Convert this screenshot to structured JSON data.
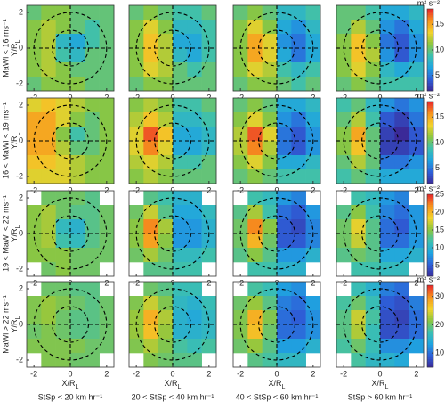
{
  "colormap": [
    "#3b2a98",
    "#2e5fd8",
    "#1fa4e0",
    "#3cc0b0",
    "#8cc63f",
    "#f2d22b",
    "#f7941d",
    "#e8262b"
  ],
  "chart_data": [
    {
      "type": "heatmap",
      "row_label": "MaWi < 16 ms⁻¹",
      "ylabel": "Y/R",
      "ylabel_sub": "L",
      "xlim": [
        -2.4,
        2.4
      ],
      "ylim": [
        -2.4,
        2.4
      ],
      "xticks": [
        -2,
        0,
        2
      ],
      "yticks": [
        -2,
        0,
        2
      ],
      "clim": [
        2,
        18
      ],
      "z": [
        [
          10,
          11,
          11,
          10,
          10,
          10
        ],
        [
          11,
          12,
          11,
          10,
          9,
          10
        ],
        [
          11,
          12,
          8,
          7,
          9,
          10
        ],
        [
          11,
          12,
          9,
          8,
          10,
          10
        ],
        [
          11,
          12,
          11,
          10,
          10,
          10
        ],
        [
          10,
          11,
          11,
          11,
          10,
          10
        ]
      ]
    },
    {
      "type": "heatmap",
      "xlim": [
        -2.4,
        2.4
      ],
      "ylim": [
        -2.4,
        2.4
      ],
      "xticks": [
        -2,
        0,
        2
      ],
      "clim": [
        2,
        18
      ],
      "z": [
        [
          10,
          11,
          10,
          9,
          9,
          10
        ],
        [
          11,
          13,
          11,
          8,
          8,
          9
        ],
        [
          11,
          14,
          12,
          7,
          7,
          9
        ],
        [
          11,
          14,
          12,
          8,
          7,
          9
        ],
        [
          11,
          13,
          12,
          10,
          9,
          10
        ],
        [
          10,
          11,
          11,
          10,
          10,
          10
        ]
      ]
    },
    {
      "type": "heatmap",
      "xlim": [
        -2.4,
        2.4
      ],
      "ylim": [
        -2.4,
        2.4
      ],
      "xticks": [
        -2,
        0,
        2
      ],
      "clim": [
        2,
        18
      ],
      "z": [
        [
          10,
          11,
          10,
          8,
          8,
          9
        ],
        [
          11,
          13,
          11,
          7,
          6,
          8
        ],
        [
          11,
          15,
          13,
          6,
          5,
          7
        ],
        [
          11,
          15,
          13,
          7,
          5,
          7
        ],
        [
          11,
          13,
          12,
          9,
          8,
          9
        ],
        [
          10,
          11,
          11,
          10,
          9,
          10
        ]
      ]
    },
    {
      "type": "heatmap",
      "xlim": [
        -2.4,
        2.4
      ],
      "ylim": [
        -2.4,
        2.4
      ],
      "xticks": [
        -2,
        0,
        2
      ],
      "clim": [
        2,
        18
      ],
      "colorbar": {
        "label": "m² s⁻²",
        "ticks": [
          5,
          10,
          15
        ]
      },
      "z": [
        [
          10,
          10,
          9,
          7,
          7,
          8
        ],
        [
          10,
          12,
          10,
          6,
          5,
          7
        ],
        [
          11,
          14,
          11,
          5,
          4,
          6
        ],
        [
          11,
          14,
          12,
          6,
          4,
          6
        ],
        [
          11,
          13,
          11,
          8,
          7,
          8
        ],
        [
          10,
          11,
          10,
          9,
          9,
          9
        ]
      ]
    },
    {
      "type": "heatmap",
      "row_label": "16 < MaWi < 19 ms⁻¹",
      "ylabel": "Y/R",
      "ylabel_sub": "L",
      "xlim": [
        -2.4,
        2.4
      ],
      "ylim": [
        -2.4,
        2.4
      ],
      "xticks": [
        -2,
        0,
        2
      ],
      "yticks": [
        -2,
        0,
        2
      ],
      "clim": [
        2,
        18
      ],
      "z": [
        [
          13,
          14,
          13,
          12,
          11,
          11
        ],
        [
          15,
          15,
          13,
          11,
          10,
          11
        ],
        [
          15,
          15,
          11,
          9,
          10,
          11
        ],
        [
          15,
          15,
          12,
          10,
          10,
          11
        ],
        [
          14,
          14,
          13,
          12,
          11,
          11
        ],
        [
          13,
          13,
          13,
          12,
          11,
          11
        ]
      ]
    },
    {
      "type": "heatmap",
      "xlim": [
        -2.4,
        2.4
      ],
      "ylim": [
        -2.4,
        2.4
      ],
      "xticks": [
        -2,
        0,
        2
      ],
      "clim": [
        2,
        18
      ],
      "z": [
        [
          11,
          12,
          11,
          9,
          9,
          10
        ],
        [
          12,
          14,
          12,
          8,
          8,
          9
        ],
        [
          13,
          17,
          14,
          7,
          7,
          8
        ],
        [
          13,
          16,
          13,
          7,
          7,
          8
        ],
        [
          12,
          13,
          12,
          9,
          9,
          10
        ],
        [
          11,
          12,
          11,
          10,
          10,
          10
        ]
      ]
    },
    {
      "type": "heatmap",
      "xlim": [
        -2.4,
        2.4
      ],
      "ylim": [
        -2.4,
        2.4
      ],
      "xticks": [
        -2,
        0,
        2
      ],
      "clim": [
        2,
        18
      ],
      "z": [
        [
          10,
          11,
          10,
          7,
          7,
          8
        ],
        [
          11,
          13,
          11,
          6,
          5,
          7
        ],
        [
          12,
          17,
          13,
          5,
          4,
          6
        ],
        [
          12,
          16,
          12,
          5,
          4,
          6
        ],
        [
          11,
          13,
          11,
          7,
          7,
          8
        ],
        [
          10,
          11,
          10,
          9,
          9,
          9
        ]
      ]
    },
    {
      "type": "heatmap",
      "xlim": [
        -2.4,
        2.4
      ],
      "ylim": [
        -2.4,
        2.4
      ],
      "xticks": [
        -2,
        0,
        2
      ],
      "clim": [
        2,
        18
      ],
      "colorbar": {
        "label": "m² s⁻²",
        "ticks": [
          5,
          10,
          15
        ]
      },
      "z": [
        [
          9,
          10,
          8,
          6,
          5,
          6
        ],
        [
          10,
          12,
          9,
          4,
          3,
          5
        ],
        [
          11,
          15,
          10,
          3,
          2,
          4
        ],
        [
          11,
          14,
          10,
          3,
          3,
          4
        ],
        [
          10,
          12,
          10,
          5,
          5,
          6
        ],
        [
          9,
          10,
          9,
          7,
          7,
          7
        ]
      ]
    },
    {
      "type": "heatmap",
      "row_label": "19 < MaWi < 22 ms⁻¹",
      "ylabel": "Y/R",
      "ylabel_sub": "L",
      "xlim": [
        -2.4,
        2.4
      ],
      "ylim": [
        -2.4,
        2.4
      ],
      "xticks": [
        -2,
        0,
        2
      ],
      "yticks": [
        -2,
        0,
        2
      ],
      "clim": [
        2,
        25
      ],
      "z": [
        [
          null,
          14,
          14,
          14,
          13,
          null
        ],
        [
          15,
          16,
          14,
          13,
          13,
          14
        ],
        [
          15,
          16,
          11,
          10,
          13,
          14
        ],
        [
          15,
          16,
          12,
          11,
          13,
          14
        ],
        [
          15,
          15,
          15,
          14,
          14,
          14
        ],
        [
          null,
          14,
          15,
          14,
          14,
          null
        ]
      ]
    },
    {
      "type": "heatmap",
      "xlim": [
        -2.4,
        2.4
      ],
      "ylim": [
        -2.4,
        2.4
      ],
      "xticks": [
        -2,
        0,
        2
      ],
      "clim": [
        2,
        25
      ],
      "z": [
        [
          null,
          13,
          12,
          10,
          10,
          null
        ],
        [
          14,
          17,
          13,
          9,
          9,
          11
        ],
        [
          15,
          22,
          16,
          8,
          8,
          10
        ],
        [
          15,
          21,
          15,
          8,
          8,
          10
        ],
        [
          14,
          16,
          14,
          11,
          11,
          12
        ],
        [
          null,
          13,
          13,
          12,
          12,
          null
        ]
      ]
    },
    {
      "type": "heatmap",
      "xlim": [
        -2.4,
        2.4
      ],
      "ylim": [
        -2.4,
        2.4
      ],
      "xticks": [
        -2,
        0,
        2
      ],
      "clim": [
        2,
        25
      ],
      "z": [
        [
          null,
          12,
          11,
          8,
          7,
          null
        ],
        [
          13,
          16,
          12,
          6,
          5,
          8
        ],
        [
          14,
          22,
          15,
          5,
          4,
          7
        ],
        [
          14,
          20,
          14,
          5,
          5,
          7
        ],
        [
          13,
          15,
          13,
          8,
          8,
          10
        ],
        [
          null,
          12,
          12,
          10,
          10,
          null
        ]
      ]
    },
    {
      "type": "heatmap",
      "xlim": [
        -2.4,
        2.4
      ],
      "ylim": [
        -2.4,
        2.4
      ],
      "xticks": [
        -2,
        0,
        2
      ],
      "clim": [
        2,
        25
      ],
      "colorbar": {
        "label": "m² s⁻²",
        "ticks": [
          5,
          10,
          15,
          20,
          25
        ]
      },
      "z": [
        [
          null,
          12,
          11,
          8,
          7,
          null
        ],
        [
          13,
          15,
          12,
          7,
          6,
          8
        ],
        [
          14,
          18,
          13,
          6,
          5,
          8
        ],
        [
          14,
          17,
          13,
          6,
          6,
          8
        ],
        [
          13,
          14,
          13,
          9,
          9,
          10
        ],
        [
          null,
          12,
          12,
          11,
          11,
          null
        ]
      ]
    },
    {
      "type": "heatmap",
      "row_label": "MaWi > 22 ms⁻¹",
      "ylabel": "Y/R",
      "ylabel_sub": "L",
      "xlabel": "X/R",
      "xlabel_sub": "L",
      "col_label": "StSp < 20 km hr⁻¹",
      "xlim": [
        -2.4,
        2.4
      ],
      "ylim": [
        -2.4,
        2.4
      ],
      "xticks": [
        -2,
        0,
        2
      ],
      "yticks": [
        -2,
        0,
        2
      ],
      "clim": [
        5,
        34
      ],
      "z": [
        [
          null,
          20,
          20,
          19,
          19,
          null
        ],
        [
          21,
          22,
          21,
          20,
          19,
          20
        ],
        [
          21,
          22,
          20,
          19,
          19,
          20
        ],
        [
          20,
          21,
          20,
          19,
          19,
          20
        ],
        [
          21,
          21,
          21,
          21,
          20,
          20
        ],
        [
          null,
          21,
          21,
          20,
          20,
          null
        ]
      ]
    },
    {
      "type": "heatmap",
      "xlabel": "X/R",
      "xlabel_sub": "L",
      "col_label": "20 < StSp < 40 km hr⁻¹",
      "xlim": [
        -2.4,
        2.4
      ],
      "ylim": [
        -2.4,
        2.4
      ],
      "xticks": [
        -2,
        0,
        2
      ],
      "clim": [
        5,
        34
      ],
      "z": [
        [
          null,
          20,
          19,
          17,
          17,
          null
        ],
        [
          21,
          24,
          21,
          16,
          15,
          17
        ],
        [
          22,
          28,
          23,
          15,
          14,
          16
        ],
        [
          22,
          27,
          22,
          15,
          15,
          16
        ],
        [
          21,
          23,
          21,
          18,
          17,
          18
        ],
        [
          null,
          21,
          20,
          19,
          19,
          null
        ]
      ]
    },
    {
      "type": "heatmap",
      "xlabel": "X/R",
      "xlabel_sub": "L",
      "col_label": "40 < StSp < 60 km hr⁻¹",
      "xlim": [
        -2.4,
        2.4
      ],
      "ylim": [
        -2.4,
        2.4
      ],
      "xticks": [
        -2,
        0,
        2
      ],
      "clim": [
        5,
        34
      ],
      "z": [
        [
          null,
          18,
          17,
          13,
          12,
          null
        ],
        [
          20,
          22,
          19,
          11,
          10,
          13
        ],
        [
          21,
          28,
          21,
          10,
          9,
          12
        ],
        [
          21,
          27,
          20,
          10,
          10,
          12
        ],
        [
          20,
          22,
          19,
          13,
          13,
          15
        ],
        [
          null,
          19,
          18,
          16,
          16,
          null
        ]
      ]
    },
    {
      "type": "heatmap",
      "xlabel": "X/R",
      "xlabel_sub": "L",
      "col_label": "StSp > 60 km hr⁻¹",
      "xlim": [
        -2.4,
        2.4
      ],
      "ylim": [
        -2.4,
        2.4
      ],
      "xticks": [
        -2,
        0,
        2
      ],
      "clim": [
        5,
        34
      ],
      "colorbar": {
        "label": "m² s⁻²",
        "ticks": [
          10,
          20,
          30
        ]
      },
      "z": [
        [
          null,
          17,
          15,
          11,
          10,
          null
        ],
        [
          18,
          20,
          17,
          9,
          8,
          11
        ],
        [
          19,
          24,
          18,
          8,
          7,
          10
        ],
        [
          19,
          23,
          17,
          8,
          8,
          10
        ],
        [
          18,
          20,
          17,
          12,
          12,
          13
        ],
        [
          null,
          18,
          16,
          15,
          14,
          null
        ]
      ]
    }
  ]
}
